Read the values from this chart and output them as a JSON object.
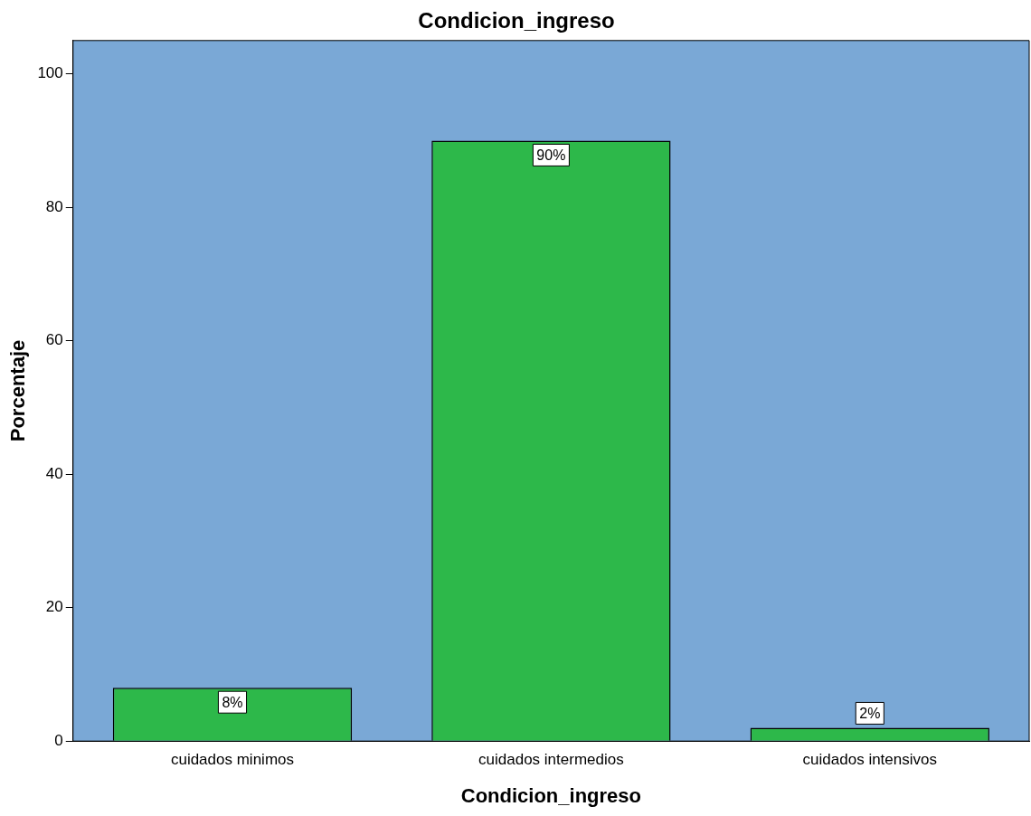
{
  "chart_data": {
    "type": "bar",
    "title": "Condicion_ingreso",
    "xlabel": "Condicion_ingreso",
    "ylabel": "Porcentaje",
    "categories": [
      "cuidados minimos",
      "cuidados intermedios",
      "cuidados intensivos"
    ],
    "values": [
      8,
      90,
      2
    ],
    "value_labels": [
      "8%",
      "90%",
      "2%"
    ],
    "color": "#2db84a",
    "ylim": [
      0,
      105
    ],
    "yticks": [
      0,
      20,
      40,
      60,
      80,
      100
    ],
    "grid": false,
    "legend": false
  }
}
